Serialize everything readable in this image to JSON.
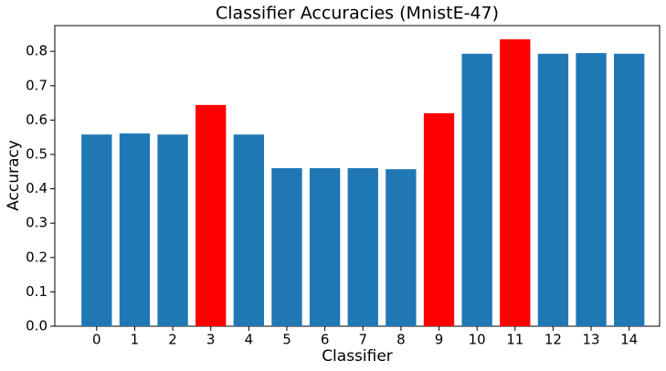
{
  "chart_data": {
    "type": "bar",
    "title": "Classifier Accuracies (MnistE-47)",
    "x_label": "Classifier",
    "y_label": "Accuracy",
    "categories": [
      "0",
      "1",
      "2",
      "3",
      "4",
      "5",
      "6",
      "7",
      "8",
      "9",
      "10",
      "11",
      "12",
      "13",
      "14"
    ],
    "values": [
      0.558,
      0.561,
      0.558,
      0.644,
      0.558,
      0.46,
      0.46,
      0.46,
      0.457,
      0.62,
      0.793,
      0.835,
      0.793,
      0.795,
      0.793
    ],
    "colors": [
      "#1f77b4",
      "#1f77b4",
      "#1f77b4",
      "#ff0000",
      "#1f77b4",
      "#1f77b4",
      "#1f77b4",
      "#1f77b4",
      "#1f77b4",
      "#ff0000",
      "#1f77b4",
      "#ff0000",
      "#1f77b4",
      "#1f77b4",
      "#1f77b4"
    ],
    "ylim": [
      0,
      0.875
    ],
    "yticks": [
      {
        "value": 0,
        "label": "0.0"
      },
      {
        "value": 0.1,
        "label": "0.1"
      },
      {
        "value": 0.2,
        "label": "0.2"
      },
      {
        "value": 0.3,
        "label": "0.3"
      },
      {
        "value": 0.4,
        "label": "0.4"
      },
      {
        "value": 0.5,
        "label": "0.5"
      },
      {
        "value": 0.6,
        "label": "0.6"
      },
      {
        "value": 0.7,
        "label": "0.7"
      },
      {
        "value": 0.8,
        "label": "0.8"
      }
    ],
    "grid": false
  }
}
